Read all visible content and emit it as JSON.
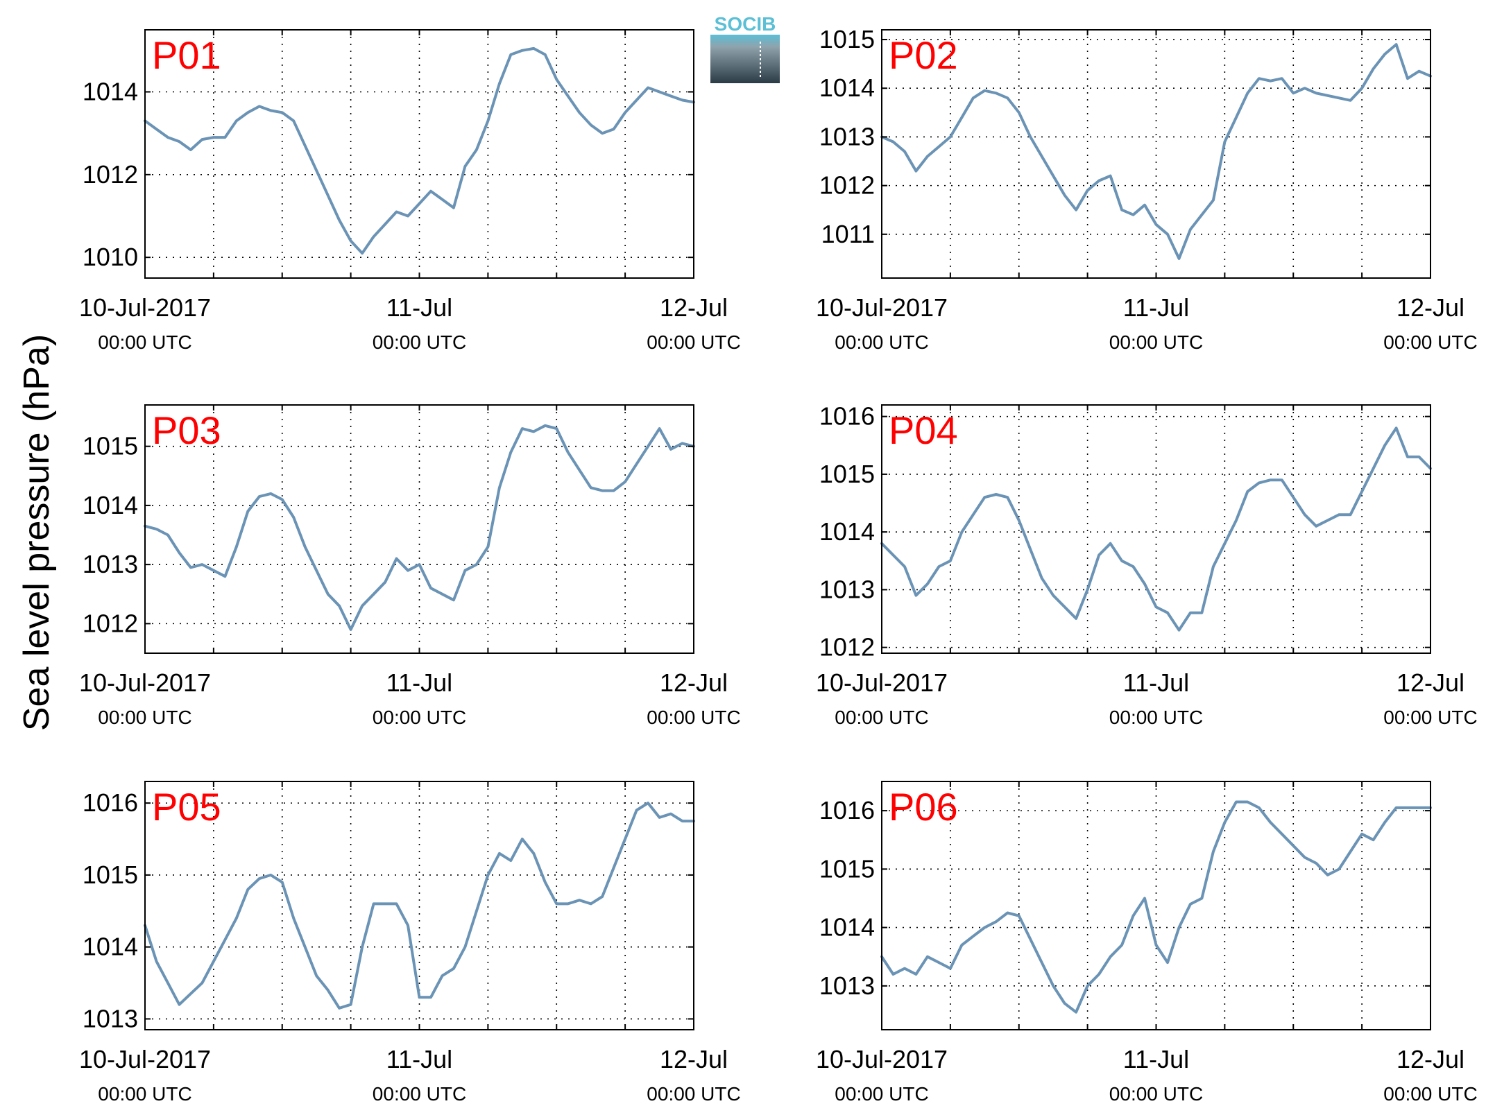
{
  "figure": {
    "ylabel": "Sea level pressure (hPa)",
    "logo_text": "SOCIB",
    "line_color": "#6a93b5",
    "label_color": "#ff0000"
  },
  "chart_data": [
    {
      "type": "line",
      "label": "P01",
      "x_ticks": [
        {
          "top": "10-Jul-2017",
          "bottom": "00:00 UTC"
        },
        {
          "top": "11-Jul",
          "bottom": "00:00 UTC"
        },
        {
          "top": "12-Jul",
          "bottom": "00:00 UTC"
        }
      ],
      "x_range_hours": [
        0,
        48
      ],
      "ylim": [
        1009.5,
        1015.5
      ],
      "y_ticks": [
        1010,
        1012,
        1014
      ],
      "grid": true,
      "series": [
        {
          "x": [
            0,
            1,
            2,
            3,
            4,
            5,
            6,
            7,
            8,
            9,
            10,
            11,
            12,
            13,
            14,
            15,
            16,
            17,
            18,
            19,
            20,
            21,
            22,
            23,
            24,
            25,
            26,
            27,
            28,
            29,
            30,
            31,
            32,
            33,
            34,
            35,
            36,
            37,
            38,
            39,
            40,
            41,
            42,
            43,
            44,
            45,
            46,
            47,
            48
          ],
          "y": [
            1013.3,
            1013.1,
            1012.9,
            1012.8,
            1012.6,
            1012.85,
            1012.9,
            1012.9,
            1013.3,
            1013.5,
            1013.65,
            1013.55,
            1013.5,
            1013.3,
            1012.7,
            1012.1,
            1011.5,
            1010.9,
            1010.4,
            1010.1,
            1010.5,
            1010.8,
            1011.1,
            1011.0,
            1011.3,
            1011.6,
            1011.4,
            1011.2,
            1012.2,
            1012.6,
            1013.3,
            1014.2,
            1014.9,
            1015.0,
            1015.05,
            1014.9,
            1014.3,
            1013.9,
            1013.5,
            1013.2,
            1013.0,
            1013.1,
            1013.5,
            1013.8,
            1014.1,
            1014.0,
            1013.9,
            1013.8,
            1013.75
          ]
        }
      ]
    },
    {
      "type": "line",
      "label": "P02",
      "x_ticks": [
        {
          "top": "10-Jul-2017",
          "bottom": "00:00 UTC"
        },
        {
          "top": "11-Jul",
          "bottom": "00:00 UTC"
        },
        {
          "top": "12-Jul",
          "bottom": "00:00 UTC"
        }
      ],
      "x_range_hours": [
        0,
        48
      ],
      "ylim": [
        1010.1,
        1015.2
      ],
      "y_ticks": [
        1011,
        1012,
        1013,
        1014,
        1015
      ],
      "grid": true,
      "series": [
        {
          "x": [
            0,
            1,
            2,
            3,
            4,
            5,
            6,
            7,
            8,
            9,
            10,
            11,
            12,
            13,
            14,
            15,
            16,
            17,
            18,
            19,
            20,
            21,
            22,
            23,
            24,
            25,
            26,
            27,
            28,
            29,
            30,
            31,
            32,
            33,
            34,
            35,
            36,
            37,
            38,
            39,
            40,
            41,
            42,
            43,
            44,
            45,
            46,
            47,
            48
          ],
          "y": [
            1013.0,
            1012.9,
            1012.7,
            1012.3,
            1012.6,
            1012.8,
            1013.0,
            1013.4,
            1013.8,
            1013.95,
            1013.9,
            1013.8,
            1013.5,
            1013.0,
            1012.6,
            1012.2,
            1011.8,
            1011.5,
            1011.9,
            1012.1,
            1012.2,
            1011.5,
            1011.4,
            1011.6,
            1011.2,
            1011.0,
            1010.5,
            1011.1,
            1011.4,
            1011.7,
            1012.9,
            1013.4,
            1013.9,
            1014.2,
            1014.15,
            1014.2,
            1013.9,
            1014.0,
            1013.9,
            1013.85,
            1013.8,
            1013.75,
            1014.0,
            1014.4,
            1014.7,
            1014.9,
            1014.2,
            1014.35,
            1014.25
          ]
        }
      ]
    },
    {
      "type": "line",
      "label": "P03",
      "x_ticks": [
        {
          "top": "10-Jul-2017",
          "bottom": "00:00 UTC"
        },
        {
          "top": "11-Jul",
          "bottom": "00:00 UTC"
        },
        {
          "top": "12-Jul",
          "bottom": "00:00 UTC"
        }
      ],
      "x_range_hours": [
        0,
        48
      ],
      "ylim": [
        1011.5,
        1015.7
      ],
      "y_ticks": [
        1012,
        1013,
        1014,
        1015
      ],
      "grid": true,
      "series": [
        {
          "x": [
            0,
            1,
            2,
            3,
            4,
            5,
            6,
            7,
            8,
            9,
            10,
            11,
            12,
            13,
            14,
            15,
            16,
            17,
            18,
            19,
            20,
            21,
            22,
            23,
            24,
            25,
            26,
            27,
            28,
            29,
            30,
            31,
            32,
            33,
            34,
            35,
            36,
            37,
            38,
            39,
            40,
            41,
            42,
            43,
            44,
            45,
            46,
            47,
            48
          ],
          "y": [
            1013.65,
            1013.6,
            1013.5,
            1013.2,
            1012.95,
            1013.0,
            1012.9,
            1012.8,
            1013.3,
            1013.9,
            1014.15,
            1014.2,
            1014.1,
            1013.8,
            1013.3,
            1012.9,
            1012.5,
            1012.3,
            1011.9,
            1012.3,
            1012.5,
            1012.7,
            1013.1,
            1012.9,
            1013.0,
            1012.6,
            1012.5,
            1012.4,
            1012.9,
            1013.0,
            1013.3,
            1014.3,
            1014.9,
            1015.3,
            1015.25,
            1015.35,
            1015.3,
            1014.9,
            1014.6,
            1014.3,
            1014.25,
            1014.25,
            1014.4,
            1014.7,
            1015.0,
            1015.3,
            1014.95,
            1015.05,
            1015.0
          ]
        }
      ]
    },
    {
      "type": "line",
      "label": "P04",
      "x_ticks": [
        {
          "top": "10-Jul-2017",
          "bottom": "00:00 UTC"
        },
        {
          "top": "11-Jul",
          "bottom": "00:00 UTC"
        },
        {
          "top": "12-Jul",
          "bottom": "00:00 UTC"
        }
      ],
      "x_range_hours": [
        0,
        48
      ],
      "ylim": [
        1011.9,
        1016.2
      ],
      "y_ticks": [
        1012,
        1013,
        1014,
        1015,
        1016
      ],
      "grid": true,
      "series": [
        {
          "x": [
            0,
            1,
            2,
            3,
            4,
            5,
            6,
            7,
            8,
            9,
            10,
            11,
            12,
            13,
            14,
            15,
            16,
            17,
            18,
            19,
            20,
            21,
            22,
            23,
            24,
            25,
            26,
            27,
            28,
            29,
            30,
            31,
            32,
            33,
            34,
            35,
            36,
            37,
            38,
            39,
            40,
            41,
            42,
            43,
            44,
            45,
            46,
            47,
            48
          ],
          "y": [
            1013.8,
            1013.6,
            1013.4,
            1012.9,
            1013.1,
            1013.4,
            1013.5,
            1014.0,
            1014.3,
            1014.6,
            1014.65,
            1014.6,
            1014.2,
            1013.7,
            1013.2,
            1012.9,
            1012.7,
            1012.5,
            1013.0,
            1013.6,
            1013.8,
            1013.5,
            1013.4,
            1013.1,
            1012.7,
            1012.6,
            1012.3,
            1012.6,
            1012.6,
            1013.4,
            1013.8,
            1014.2,
            1014.7,
            1014.85,
            1014.9,
            1014.9,
            1014.6,
            1014.3,
            1014.1,
            1014.2,
            1014.3,
            1014.3,
            1014.7,
            1015.1,
            1015.5,
            1015.8,
            1015.3,
            1015.3,
            1015.1
          ]
        }
      ]
    },
    {
      "type": "line",
      "label": "P05",
      "x_ticks": [
        {
          "top": "10-Jul-2017",
          "bottom": "00:00 UTC"
        },
        {
          "top": "11-Jul",
          "bottom": "00:00 UTC"
        },
        {
          "top": "12-Jul",
          "bottom": "00:00 UTC"
        }
      ],
      "x_range_hours": [
        0,
        48
      ],
      "ylim": [
        1012.85,
        1016.3
      ],
      "y_ticks": [
        1013,
        1014,
        1015,
        1016
      ],
      "grid": true,
      "series": [
        {
          "x": [
            0,
            1,
            2,
            3,
            4,
            5,
            6,
            7,
            8,
            9,
            10,
            11,
            12,
            13,
            14,
            15,
            16,
            17,
            18,
            19,
            20,
            21,
            22,
            23,
            24,
            25,
            26,
            27,
            28,
            29,
            30,
            31,
            32,
            33,
            34,
            35,
            36,
            37,
            38,
            39,
            40,
            41,
            42,
            43,
            44,
            45,
            46,
            47,
            48
          ],
          "y": [
            1014.3,
            1013.8,
            1013.5,
            1013.2,
            1013.35,
            1013.5,
            1013.8,
            1014.1,
            1014.4,
            1014.8,
            1014.95,
            1015.0,
            1014.9,
            1014.4,
            1014.0,
            1013.6,
            1013.4,
            1013.15,
            1013.2,
            1014.0,
            1014.6,
            1014.6,
            1014.6,
            1014.3,
            1013.3,
            1013.3,
            1013.6,
            1013.7,
            1014.0,
            1014.5,
            1015.0,
            1015.3,
            1015.2,
            1015.5,
            1015.3,
            1014.9,
            1014.6,
            1014.6,
            1014.65,
            1014.6,
            1014.7,
            1015.1,
            1015.5,
            1015.9,
            1016.0,
            1015.8,
            1015.85,
            1015.75,
            1015.75
          ]
        }
      ]
    },
    {
      "type": "line",
      "label": "P06",
      "x_ticks": [
        {
          "top": "10-Jul-2017",
          "bottom": "00:00 UTC"
        },
        {
          "top": "11-Jul",
          "bottom": "00:00 UTC"
        },
        {
          "top": "12-Jul",
          "bottom": "00:00 UTC"
        }
      ],
      "x_range_hours": [
        0,
        48
      ],
      "ylim": [
        1012.25,
        1016.5
      ],
      "y_ticks": [
        1013,
        1014,
        1015,
        1016
      ],
      "grid": true,
      "series": [
        {
          "x": [
            0,
            1,
            2,
            3,
            4,
            5,
            6,
            7,
            8,
            9,
            10,
            11,
            12,
            13,
            14,
            15,
            16,
            17,
            18,
            19,
            20,
            21,
            22,
            23,
            24,
            25,
            26,
            27,
            28,
            29,
            30,
            31,
            32,
            33,
            34,
            35,
            36,
            37,
            38,
            39,
            40,
            41,
            42,
            43,
            44,
            45,
            46,
            47,
            48
          ],
          "y": [
            1013.5,
            1013.2,
            1013.3,
            1013.2,
            1013.5,
            1013.4,
            1013.3,
            1013.7,
            1013.85,
            1014.0,
            1014.1,
            1014.25,
            1014.2,
            1013.8,
            1013.4,
            1013.0,
            1012.7,
            1012.55,
            1013.0,
            1013.2,
            1013.5,
            1013.7,
            1014.2,
            1014.5,
            1013.7,
            1013.4,
            1014.0,
            1014.4,
            1014.5,
            1015.3,
            1015.8,
            1016.15,
            1016.15,
            1016.05,
            1015.8,
            1015.6,
            1015.4,
            1015.2,
            1015.1,
            1014.9,
            1015.0,
            1015.3,
            1015.6,
            1015.5,
            1015.8,
            1016.05,
            1016.05,
            1016.05,
            1016.05
          ]
        }
      ]
    }
  ]
}
